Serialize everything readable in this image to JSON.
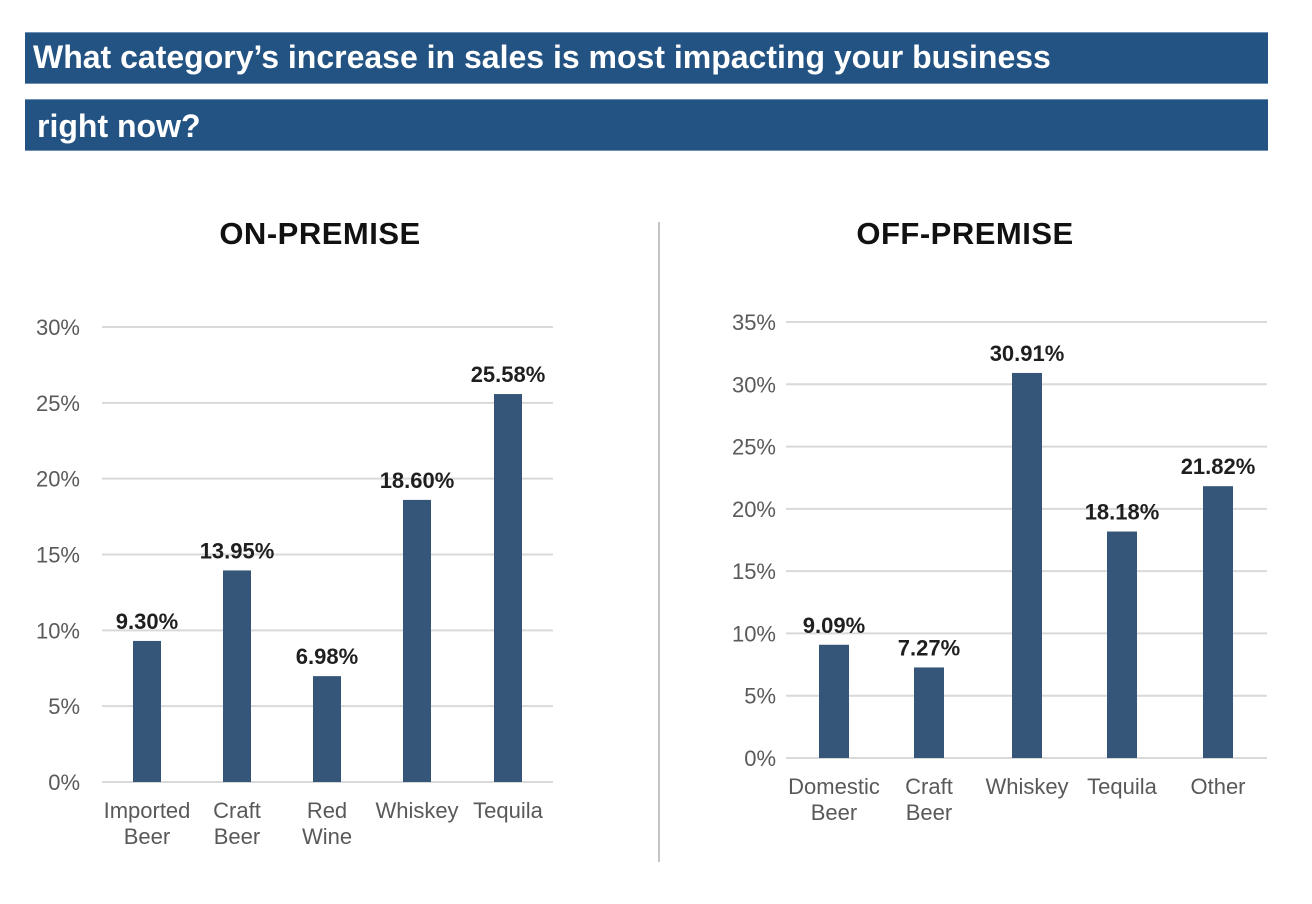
{
  "header": {
    "line1": "What category’s increase in sales is most impacting your business",
    "line2": "right now?"
  },
  "colors": {
    "banner": "#235383",
    "bar": "#365679",
    "grid": "#d9d9d9",
    "divider": "#c4c4c4"
  },
  "chart_data": [
    {
      "type": "bar",
      "title": "ON-PREMISE",
      "xlabel": "",
      "ylabel": "",
      "categories": [
        [
          "Imported",
          "Beer"
        ],
        [
          "Craft",
          "Beer"
        ],
        [
          "Red",
          "Wine"
        ],
        [
          "Whiskey"
        ],
        [
          "Tequila"
        ]
      ],
      "values": [
        9.3,
        13.95,
        6.98,
        18.6,
        25.58
      ],
      "data_labels": [
        "9.30%",
        "13.95%",
        "6.98%",
        "18.60%",
        "25.58%"
      ],
      "ylim": [
        0,
        30
      ],
      "yticks": [
        0,
        5,
        10,
        15,
        20,
        25,
        30
      ],
      "ytick_labels": [
        "0%",
        "5%",
        "10%",
        "15%",
        "20%",
        "25%",
        "30%"
      ],
      "grid": true,
      "legend": "none"
    },
    {
      "type": "bar",
      "title": "OFF-PREMISE",
      "xlabel": "",
      "ylabel": "",
      "categories": [
        [
          "Domestic",
          "Beer"
        ],
        [
          "Craft",
          "Beer"
        ],
        [
          "Whiskey"
        ],
        [
          "Tequila"
        ],
        [
          "Other"
        ]
      ],
      "values": [
        9.09,
        7.27,
        30.91,
        18.18,
        21.82
      ],
      "data_labels": [
        "9.09%",
        "7.27%",
        "30.91%",
        "18.18%",
        "21.82%"
      ],
      "ylim": [
        0,
        35
      ],
      "yticks": [
        0,
        5,
        10,
        15,
        20,
        25,
        30,
        35
      ],
      "ytick_labels": [
        "0%",
        "5%",
        "10%",
        "15%",
        "20%",
        "25%",
        "30%",
        "35%"
      ],
      "grid": true,
      "legend": "none"
    }
  ]
}
